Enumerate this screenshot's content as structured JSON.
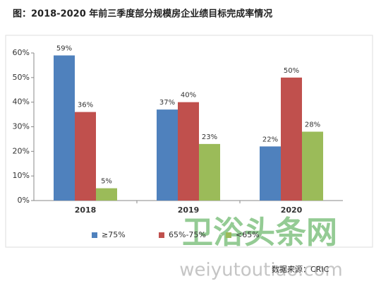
{
  "chart_data": {
    "type": "bar",
    "title": "图：2018-2020 年前三季度部分规模房企业绩目标完成率情况",
    "categories": [
      "2018",
      "2019",
      "2020"
    ],
    "series": [
      {
        "name": "≥75%",
        "color": "#4f81bd",
        "values": [
          59,
          37,
          22
        ],
        "value_labels": [
          "59%",
          "37%",
          "22%"
        ]
      },
      {
        "name": "65%-75%",
        "color": "#c0504d",
        "values": [
          36,
          40,
          50
        ],
        "value_labels": [
          "36%",
          "40%",
          "50%"
        ]
      },
      {
        "name": "<65%",
        "color": "#9bbb59",
        "values": [
          5,
          23,
          28
        ],
        "value_labels": [
          "5%",
          "23%",
          "28%"
        ]
      }
    ],
    "ylim": [
      0,
      60
    ],
    "yticks": [
      {
        "value": 0,
        "label": "0%"
      },
      {
        "value": 10,
        "label": "10%"
      },
      {
        "value": 20,
        "label": "20%"
      },
      {
        "value": 30,
        "label": "30%"
      },
      {
        "value": 40,
        "label": "40%"
      },
      {
        "value": 50,
        "label": "50%"
      },
      {
        "value": 60,
        "label": "60%"
      }
    ],
    "source": "数据来源：CRIC",
    "watermark": [
      "卫浴头条网",
      "weiyutoutiao.com"
    ]
  }
}
